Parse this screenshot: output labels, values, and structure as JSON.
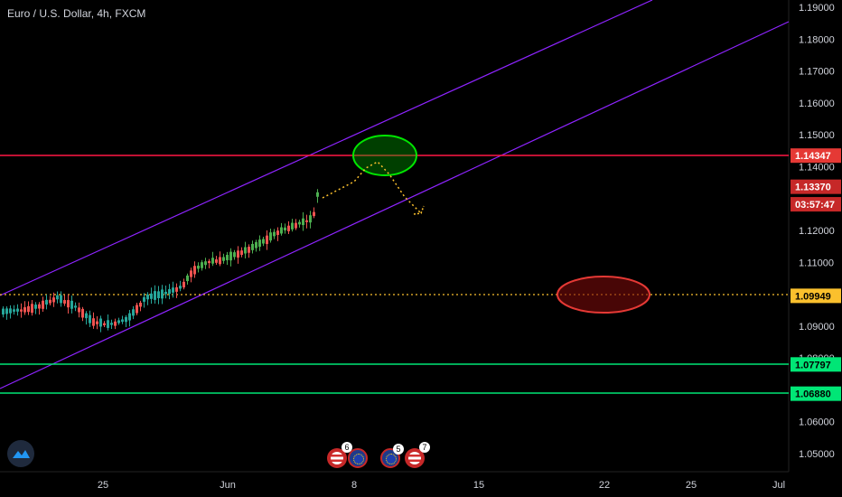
{
  "chart": {
    "title": "Euro / U.S. Dollar, 4h, FXCM"
  },
  "price_axis": {
    "labels": [
      "1.19000",
      "1.18000",
      "1.17000",
      "1.16000",
      "1.15000",
      "1.14000",
      "1.12000",
      "1.11000",
      "1.10000",
      "1.09000",
      "1.08000",
      "1.06000",
      "1.05000"
    ],
    "values": [
      1.19,
      1.18,
      1.17,
      1.16,
      1.15,
      1.14,
      1.12,
      1.11,
      1.1,
      1.09,
      1.08,
      1.06,
      1.05
    ]
  },
  "time_axis": {
    "labels": [
      "25",
      "Jun",
      "8",
      "15",
      "22",
      "25",
      "Jul"
    ]
  },
  "price_tags": [
    {
      "label": "1.14347",
      "value": 1.14347,
      "bg": "#e53935",
      "fg": "#ffffff"
    },
    {
      "label": "1.13370",
      "value": 1.1337,
      "bg": "#c62828",
      "fg": "#ffffff"
    },
    {
      "label": "03:57:47",
      "value": 1.1282,
      "bg": "#c62828",
      "fg": "#ffffff"
    },
    {
      "label": "1.09949",
      "value": 1.09949,
      "bg": "#fbc02d",
      "fg": "#000000"
    },
    {
      "label": "1.07797",
      "value": 1.07797,
      "bg": "#00e676",
      "fg": "#000000"
    },
    {
      "label": "1.06880",
      "value": 1.0688,
      "bg": "#00e676",
      "fg": "#000000"
    }
  ],
  "colors": {
    "channel": "#8e24ff",
    "resistance": "#ff1744",
    "support": "#00e676",
    "dotted": "#fbc02d",
    "candle_up": "#26a69a",
    "candle_up_bright": "#4caf50",
    "candle_down": "#ef5350",
    "ellipse_green": "#00e600",
    "ellipse_red": "#e53935"
  },
  "events": [
    {
      "icon": "us-flag-icon",
      "count": "6"
    },
    {
      "icon": "eu-flag-icon",
      "count": ""
    },
    {
      "icon": "eu-flag-icon",
      "count": "5"
    },
    {
      "icon": "us-flag-icon",
      "count": "7"
    }
  ]
}
